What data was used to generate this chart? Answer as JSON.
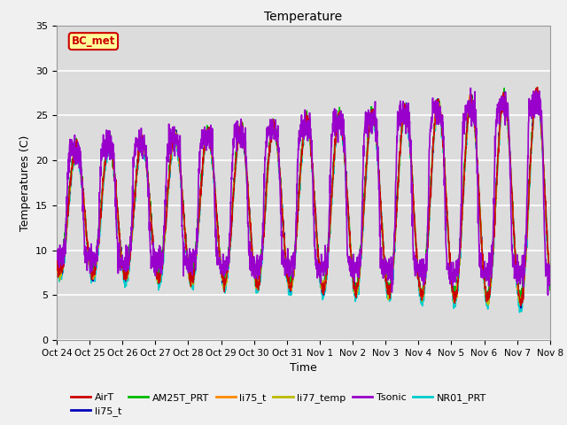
{
  "title": "Temperature",
  "xlabel": "Time",
  "ylabel": "Temperatures (C)",
  "ylim": [
    0,
    35
  ],
  "annotation": "BC_met",
  "fig_facecolor": "#f0f0f0",
  "plot_bg_color": "#dcdcdc",
  "grid_color": "#ffffff",
  "series": [
    {
      "label": "AirT",
      "color": "#cc0000",
      "lw": 1.0,
      "zorder": 5
    },
    {
      "label": "li75_t",
      "color": "#0000bb",
      "lw": 1.0,
      "zorder": 4
    },
    {
      "label": "AM25T_PRT",
      "color": "#00bb00",
      "lw": 1.0,
      "zorder": 3
    },
    {
      "label": "li75_t",
      "color": "#ff8800",
      "lw": 1.0,
      "zorder": 4
    },
    {
      "label": "li77_temp",
      "color": "#bbbb00",
      "lw": 1.0,
      "zorder": 4
    },
    {
      "label": "Tsonic",
      "color": "#9900cc",
      "lw": 1.2,
      "zorder": 6
    },
    {
      "label": "NR01_PRT",
      "color": "#00cccc",
      "lw": 1.2,
      "zorder": 2
    }
  ],
  "tick_labels": [
    "Oct 24",
    "Oct 25",
    "Oct 26",
    "Oct 27",
    "Oct 28",
    "Oct 29",
    "Oct 30",
    "Oct 31",
    "Nov 1",
    "Nov 2",
    "Nov 3",
    "Nov 4",
    "Nov 5",
    "Nov 6",
    "Nov 7",
    "Nov 8"
  ],
  "annotation_box_color": "#ffff99",
  "annotation_border_color": "#cc0000",
  "annotation_text_color": "#cc0000",
  "legend_ncol": 6
}
